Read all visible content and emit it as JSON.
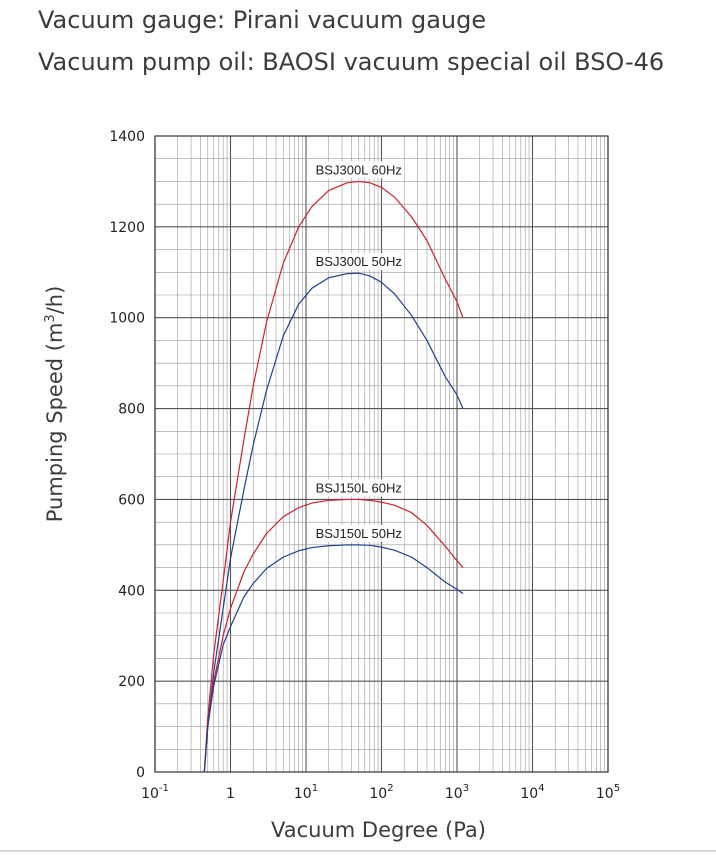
{
  "header": {
    "line1": "Vacuum gauge: Pirani vacuum gauge",
    "line2": "Vacuum pump oil: BAOSI  vacuum special oil BSO-46"
  },
  "colors": {
    "red": "#d1202f",
    "blue": "#1f3f8f",
    "grid_major": "#555555",
    "grid_minor": "#9a9a9a"
  },
  "chart_data": {
    "type": "line",
    "title": "",
    "xlabel": "Vacuum Degree (Pa)",
    "ylabel": "Pumping Speed (m3/h)",
    "ylabel_parts": {
      "pre": "Pumping Speed (m",
      "sup": "3",
      "post": "/h)"
    },
    "x_scale": "log",
    "xlim": [
      0.1,
      100000
    ],
    "ylim": [
      0,
      1400
    ],
    "grid": true,
    "x_ticks": [
      {
        "value": 0.1,
        "base": "10",
        "exp": "-1"
      },
      {
        "value": 1,
        "base": "1",
        "exp": ""
      },
      {
        "value": 10,
        "base": "10",
        "exp": "1"
      },
      {
        "value": 100,
        "base": "10",
        "exp": "2"
      },
      {
        "value": 1000,
        "base": "10",
        "exp": "3"
      },
      {
        "value": 10000,
        "base": "10",
        "exp": "4"
      },
      {
        "value": 100000,
        "base": "10",
        "exp": "5"
      }
    ],
    "y_ticks": [
      0,
      200,
      400,
      600,
      800,
      1000,
      1200,
      1400
    ],
    "series": [
      {
        "name": "BSJ300L  60Hz",
        "color": "#d1202f",
        "x": [
          0.45,
          0.5,
          0.6,
          0.8,
          1,
          1.5,
          2,
          3,
          5,
          8,
          12,
          20,
          35,
          50,
          70,
          100,
          150,
          250,
          400,
          700,
          1000,
          1200
        ],
        "y": [
          0,
          120,
          260,
          420,
          550,
          730,
          850,
          990,
          1120,
          1200,
          1245,
          1280,
          1297,
          1300,
          1297,
          1287,
          1265,
          1222,
          1170,
          1085,
          1035,
          1000
        ]
      },
      {
        "name": "BSJ300L  50Hz",
        "color": "#1f3f8f",
        "x": [
          0.45,
          0.5,
          0.6,
          0.8,
          1,
          1.5,
          2,
          3,
          5,
          8,
          12,
          20,
          35,
          50,
          70,
          100,
          150,
          250,
          400,
          700,
          1000,
          1200
        ],
        "y": [
          0,
          100,
          220,
          360,
          470,
          620,
          720,
          840,
          960,
          1030,
          1065,
          1088,
          1097,
          1098,
          1092,
          1078,
          1052,
          1005,
          950,
          870,
          830,
          800
        ]
      },
      {
        "name": "BSJ150L  60Hz",
        "color": "#d1202f",
        "x": [
          0.45,
          0.5,
          0.6,
          0.8,
          1,
          1.5,
          2,
          3,
          5,
          8,
          12,
          20,
          35,
          50,
          70,
          100,
          150,
          250,
          400,
          700,
          1000,
          1200
        ],
        "y": [
          0,
          100,
          200,
          300,
          360,
          440,
          480,
          525,
          562,
          582,
          592,
          598,
          600,
          600,
          598,
          594,
          587,
          571,
          543,
          497,
          465,
          450
        ]
      },
      {
        "name": "BSJ150L  50Hz",
        "color": "#1f3f8f",
        "x": [
          0.45,
          0.5,
          0.6,
          0.8,
          1,
          1.5,
          2,
          3,
          5,
          8,
          12,
          20,
          35,
          50,
          70,
          100,
          150,
          250,
          400,
          700,
          1000,
          1200
        ],
        "y": [
          0,
          100,
          190,
          280,
          320,
          385,
          415,
          448,
          473,
          487,
          494,
          498,
          500,
          500,
          499,
          495,
          488,
          473,
          450,
          418,
          402,
          393
        ]
      }
    ],
    "annotations": [
      {
        "text": "BSJ300L  60Hz",
        "x": 50,
        "y": 1300
      },
      {
        "text": "BSJ300L  50Hz",
        "x": 50,
        "y": 1098
      },
      {
        "text": "BSJ150L  60Hz",
        "x": 50,
        "y": 600
      },
      {
        "text": "BSJ150L  50Hz",
        "x": 50,
        "y": 500
      }
    ]
  }
}
